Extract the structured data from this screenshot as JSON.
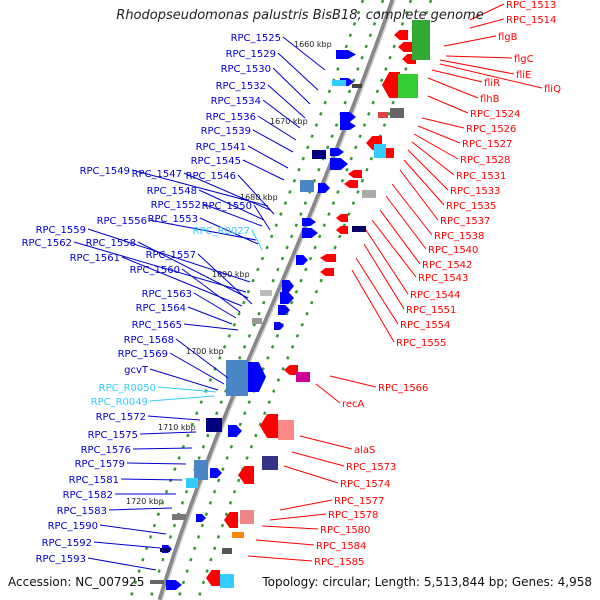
{
  "title": "Rhodopseudomonas palustris BisB18, complete genome",
  "footer": {
    "accession": "Accession: NC_007925",
    "topology": "Topology: circular; Length: 5,513,844 bp; Genes: 4,958"
  },
  "colors": {
    "forward_gene": "#0000ff",
    "reverse_gene": "#ff0000",
    "rna_gene": "#33ccff",
    "backbone": "#888888",
    "tick": "#339933"
  },
  "ticks": [
    "1660 kbp",
    "1670 kbp",
    "1680 kbp",
    "1690 kbp",
    "1700 kbp",
    "1710 kbp",
    "1720 kbp"
  ],
  "left_labels": [
    {
      "text": "RPC_1525",
      "type": "forward"
    },
    {
      "text": "RPC_1529",
      "type": "forward"
    },
    {
      "text": "RPC_1530",
      "type": "forward"
    },
    {
      "text": "RPC_1532",
      "type": "forward"
    },
    {
      "text": "RPC_1534",
      "type": "forward"
    },
    {
      "text": "RPC_1536",
      "type": "forward"
    },
    {
      "text": "RPC_1539",
      "type": "forward"
    },
    {
      "text": "RPC_1541",
      "type": "forward"
    },
    {
      "text": "RPC_1545",
      "type": "forward"
    },
    {
      "text": "RPC_1549",
      "type": "forward"
    },
    {
      "text": "RPC_1547",
      "type": "forward"
    },
    {
      "text": "RPC_1546",
      "type": "forward"
    },
    {
      "text": "RPC_1548",
      "type": "forward"
    },
    {
      "text": "RPC_1552",
      "type": "forward"
    },
    {
      "text": "RPC_1550",
      "type": "forward"
    },
    {
      "text": "RPC_1556",
      "type": "forward"
    },
    {
      "text": "RPC_1553",
      "type": "forward"
    },
    {
      "text": "RPC_R0027",
      "type": "rna"
    },
    {
      "text": "RPC_1559",
      "type": "forward"
    },
    {
      "text": "RPC_1562",
      "type": "forward"
    },
    {
      "text": "RPC_1558",
      "type": "forward"
    },
    {
      "text": "RPC_1557",
      "type": "forward"
    },
    {
      "text": "RPC_1561",
      "type": "forward"
    },
    {
      "text": "RPC_1560",
      "type": "forward"
    },
    {
      "text": "RPC_1563",
      "type": "forward"
    },
    {
      "text": "RPC_1564",
      "type": "forward"
    },
    {
      "text": "RPC_1565",
      "type": "forward"
    },
    {
      "text": "RPC_1568",
      "type": "forward"
    },
    {
      "text": "RPC_1569",
      "type": "forward"
    },
    {
      "text": "gcvT",
      "type": "forward"
    },
    {
      "text": "RPC_R0050",
      "type": "rna"
    },
    {
      "text": "RPC_R0049",
      "type": "rna"
    },
    {
      "text": "RPC_1572",
      "type": "forward"
    },
    {
      "text": "RPC_1575",
      "type": "forward"
    },
    {
      "text": "RPC_1576",
      "type": "forward"
    },
    {
      "text": "RPC_1579",
      "type": "forward"
    },
    {
      "text": "RPC_1581",
      "type": "forward"
    },
    {
      "text": "RPC_1582",
      "type": "forward"
    },
    {
      "text": "RPC_1583",
      "type": "forward"
    },
    {
      "text": "RPC_1590",
      "type": "forward"
    },
    {
      "text": "RPC_1592",
      "type": "forward"
    },
    {
      "text": "RPC_1593",
      "type": "forward"
    }
  ],
  "right_labels": [
    {
      "text": "RPC_1513",
      "type": "reverse"
    },
    {
      "text": "RPC_1514",
      "type": "reverse"
    },
    {
      "text": "flgB",
      "type": "reverse"
    },
    {
      "text": "flgC",
      "type": "reverse"
    },
    {
      "text": "fliE",
      "type": "reverse"
    },
    {
      "text": "fliQ",
      "type": "reverse"
    },
    {
      "text": "fliR",
      "type": "reverse"
    },
    {
      "text": "flhB",
      "type": "reverse"
    },
    {
      "text": "RPC_1524",
      "type": "reverse"
    },
    {
      "text": "RPC_1526",
      "type": "reverse"
    },
    {
      "text": "RPC_1527",
      "type": "reverse"
    },
    {
      "text": "RPC_1528",
      "type": "reverse"
    },
    {
      "text": "RPC_1531",
      "type": "reverse"
    },
    {
      "text": "RPC_1533",
      "type": "reverse"
    },
    {
      "text": "RPC_1535",
      "type": "reverse"
    },
    {
      "text": "RPC_1537",
      "type": "reverse"
    },
    {
      "text": "RPC_1538",
      "type": "reverse"
    },
    {
      "text": "RPC_1540",
      "type": "reverse"
    },
    {
      "text": "RPC_1542",
      "type": "reverse"
    },
    {
      "text": "RPC_1543",
      "type": "reverse"
    },
    {
      "text": "RPC_1544",
      "type": "reverse"
    },
    {
      "text": "RPC_1551",
      "type": "reverse"
    },
    {
      "text": "RPC_1554",
      "type": "reverse"
    },
    {
      "text": "RPC_1555",
      "type": "reverse"
    },
    {
      "text": "RPC_1566",
      "type": "reverse"
    },
    {
      "text": "recA",
      "type": "reverse"
    },
    {
      "text": "alaS",
      "type": "reverse"
    },
    {
      "text": "RPC_1573",
      "type": "reverse"
    },
    {
      "text": "RPC_1574",
      "type": "reverse"
    },
    {
      "text": "RPC_1577",
      "type": "reverse"
    },
    {
      "text": "RPC_1578",
      "type": "reverse"
    },
    {
      "text": "RPC_1580",
      "type": "reverse"
    },
    {
      "text": "RPC_1584",
      "type": "reverse"
    },
    {
      "text": "RPC_1585",
      "type": "reverse"
    }
  ]
}
